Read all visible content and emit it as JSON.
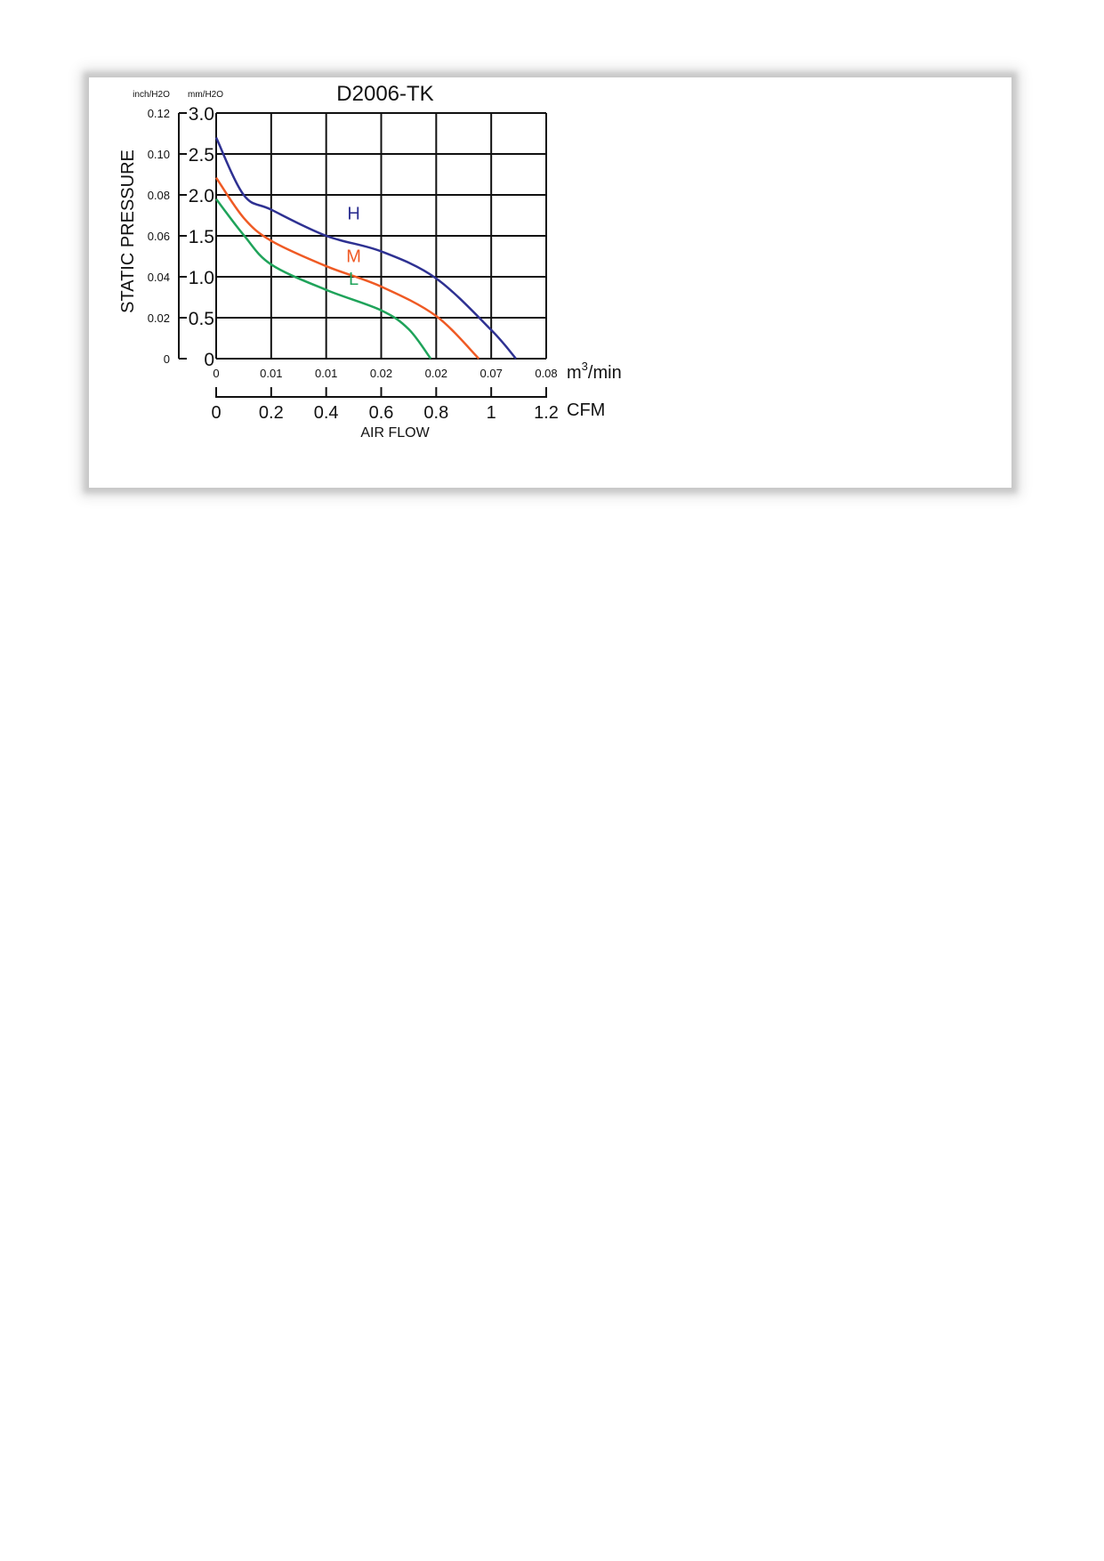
{
  "chart_data": {
    "type": "line",
    "title": "D2006-TK",
    "xlabel": "AIR FLOW",
    "ylabel": "STATIC PRESSURE",
    "y_units": {
      "primary": "mm/H2O",
      "secondary": "inch/H2O"
    },
    "x_units": {
      "primary": "CFM",
      "secondary": "m3/min"
    },
    "xlim": [
      0,
      1.2
    ],
    "ylim": [
      0,
      3.0
    ],
    "grid": true,
    "x_ticks": [
      "0",
      "0.2",
      "0.4",
      "0.6",
      "0.8",
      "1",
      "1.2"
    ],
    "x_ticks_secondary": [
      "0",
      "0.01",
      "0.01",
      "0.02",
      "0.02",
      "0.07",
      "0.08"
    ],
    "x_secondary_unit_label": {
      "base": "m",
      "sup": "3",
      "rest": "/min"
    },
    "y_ticks": [
      "0",
      "0.5",
      "1.0",
      "1.5",
      "2.0",
      "2.5",
      "3.0"
    ],
    "y_ticks_secondary": [
      "0",
      "0.02",
      "0.04",
      "0.06",
      "0.08",
      "0.10",
      "0.12"
    ],
    "series": [
      {
        "name": "H",
        "color": "#2e3192",
        "x": [
          0,
          0.1,
          0.2,
          0.4,
          0.6,
          0.8,
          1.0,
          1.09
        ],
        "y": [
          2.7,
          2.0,
          1.82,
          1.5,
          1.31,
          0.98,
          0.35,
          0
        ]
      },
      {
        "name": "M",
        "color": "#ef5a24",
        "x": [
          0,
          0.1,
          0.2,
          0.4,
          0.6,
          0.8,
          0.955
        ],
        "y": [
          2.21,
          1.72,
          1.44,
          1.13,
          0.88,
          0.52,
          0
        ]
      },
      {
        "name": "L",
        "color": "#1fa35a",
        "x": [
          0,
          0.1,
          0.2,
          0.4,
          0.6,
          0.7,
          0.78
        ],
        "y": [
          1.95,
          1.51,
          1.15,
          0.84,
          0.59,
          0.36,
          0
        ]
      }
    ]
  }
}
